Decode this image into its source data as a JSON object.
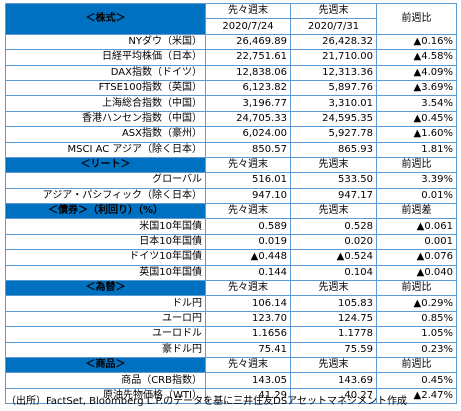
{
  "sections": [
    {
      "title": "＜株式＞",
      "headers": [
        "先々週末\n2020/7/24",
        "先週末\n2020/7/31",
        "前週比"
      ],
      "rows": [
        {
          "name": "NYダウ（米国）",
          "v1": "26,469.89",
          "v2": "26,428.32",
          "chg": "▲0.16%",
          "neg": true
        },
        {
          "name": "日経平均株価（日本）",
          "v1": "22,751.61",
          "v2": "21,710.00",
          "chg": "▲4.58%",
          "neg": true
        },
        {
          "name": "DAX指数（ドイツ）",
          "v1": "12,838.06",
          "v2": "12,313.36",
          "chg": "▲4.09%",
          "neg": true
        },
        {
          "name": "FTSE100指数（英国）",
          "v1": "6,123.82",
          "v2": "5,897.76",
          "chg": "▲3.69%",
          "neg": true
        },
        {
          "name": "上海総合指数（中国）",
          "v1": "3,196.77",
          "v2": "3,310.01",
          "chg": "3.54%",
          "neg": false
        },
        {
          "name": "香港ハンセン指数（中国）",
          "v1": "24,705.33",
          "v2": "24,595.35",
          "chg": "▲0.45%",
          "neg": true
        },
        {
          "name": "ASX指数（豪州）",
          "v1": "6,024.00",
          "v2": "5,927.78",
          "chg": "▲1.60%",
          "neg": true
        },
        {
          "name": "MSCI AC アジア（除く日本）",
          "v1": "850.57",
          "v2": "865.93",
          "chg": "1.81%",
          "neg": false
        }
      ]
    },
    {
      "title": "＜リート＞",
      "headers": [
        "先々週末",
        "先週末",
        "前週比"
      ],
      "rows": [
        {
          "name": "グローバル",
          "v1": "516.01",
          "v2": "533.50",
          "chg": "3.39%",
          "neg": false
        },
        {
          "name": "アジア・パシフィック（除く日本）",
          "v1": "947.10",
          "v2": "947.17",
          "chg": "0.01%",
          "neg": false
        }
      ]
    },
    {
      "title": "＜債券＞（利回り）（%）",
      "headers": [
        "先々週末",
        "先週末",
        "前週差"
      ],
      "rows": [
        {
          "name": "米国10年国債",
          "v1": "0.589",
          "v2": "0.528",
          "chg": "▲0.061",
          "neg": true
        },
        {
          "name": "日本10年国債",
          "v1": "0.019",
          "v2": "0.020",
          "chg": "0.001",
          "neg": false
        },
        {
          "name": "ドイツ10年国債",
          "v1": "▲0.448",
          "v2": "▲0.524",
          "chg": "▲0.076",
          "neg": true,
          "v1neg": true,
          "v2neg": true
        },
        {
          "name": "英国10年国債",
          "v1": "0.144",
          "v2": "0.104",
          "chg": "▲0.040",
          "neg": true
        }
      ]
    },
    {
      "title": "＜為替＞",
      "headers": [
        "先々週末",
        "先週末",
        "前週比"
      ],
      "rows": [
        {
          "name": "ドル円",
          "v1": "106.14",
          "v2": "105.83",
          "chg": "▲0.29%",
          "neg": true
        },
        {
          "name": "ユーロ円",
          "v1": "123.70",
          "v2": "124.75",
          "chg": "0.85%",
          "neg": false
        },
        {
          "name": "ユーロドル",
          "v1": "1.1656",
          "v2": "1.1778",
          "chg": "1.05%",
          "neg": false
        },
        {
          "name": "豪ドル円",
          "v1": "75.41",
          "v2": "75.59",
          "chg": "0.23%",
          "neg": false
        }
      ]
    },
    {
      "title": "＜商品＞",
      "headers": [
        "先々週末",
        "先週末",
        "前週比"
      ],
      "rows": [
        {
          "name": "商品（CRB指数）",
          "v1": "143.05",
          "v2": "143.69",
          "chg": "0.45%",
          "neg": false
        },
        {
          "name": "原油先物価格（WTI）",
          "v1": "41.29",
          "v2": "40.27",
          "chg": "▲2.47%",
          "neg": true
        }
      ]
    }
  ],
  "source": "（出所）FactSet, Bloomberg L.P.のデータを基に三井住友DSアセットマネジメント作成",
  "colors": {
    "header_bg": "#0070c0",
    "border": "#5b9bd5",
    "negative": "#ff0000"
  }
}
